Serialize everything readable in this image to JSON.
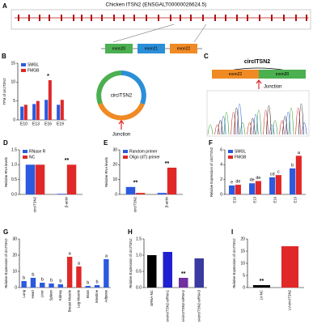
{
  "figure": {
    "panel_a": "A",
    "panel_c": "C",
    "gene_title": "Chicken ITSN2 (ENSGALT00000026624.5)",
    "exons": [
      "exon20",
      "exon21",
      "exon22"
    ],
    "circ_label": "circITSN2",
    "junction": "Junction",
    "c_title": "circITSN2",
    "c_exons": [
      "exon22",
      "exon20"
    ],
    "c_junction": "Junction"
  },
  "chart_data": [
    {
      "type": "bar",
      "panel": "B",
      "ylabel": "TPM of circITSN2",
      "categories": [
        "E10",
        "E13",
        "E16",
        "E19"
      ],
      "series": [
        {
          "name": "SMGL",
          "color": "#2b59e0",
          "values": [
            3.5,
            4.2,
            5.3,
            4.0
          ]
        },
        {
          "name": "FMGB",
          "color": "#e02828",
          "values": [
            4.0,
            5.0,
            10.5,
            5.3
          ]
        }
      ],
      "ylim": [
        0,
        15
      ],
      "yticks": [
        0,
        5,
        10,
        15
      ],
      "annotations": [
        "*"
      ]
    },
    {
      "type": "bar",
      "panel": "D",
      "ylabel": "Relative RNA levels",
      "categories": [
        "circITSN2",
        "β-actin"
      ],
      "series": [
        {
          "name": "RNase R",
          "color": "#2b59e0",
          "values": [
            1.0,
            0.02
          ]
        },
        {
          "name": "NC",
          "color": "#e02828",
          "values": [
            1.0,
            1.0
          ]
        }
      ],
      "ylim": [
        0,
        1.5
      ],
      "yticks": [
        {
          "value": 0,
          "label": "0.0"
        },
        {
          "value": 0.5,
          "label": "0.5"
        },
        {
          "value": 1,
          "label": "1.0"
        },
        {
          "value": 1.5,
          "label": "1.5"
        }
      ],
      "annotations": [
        "**"
      ]
    },
    {
      "type": "bar",
      "panel": "E",
      "ylabel": "Relative RNA levels",
      "categories": [
        "circITSN2",
        "β-actin"
      ],
      "series": [
        {
          "name": "Random primer",
          "color": "#2b59e0",
          "values": [
            5.0,
            1.0
          ]
        },
        {
          "name": "Oligo (dT) primer",
          "color": "#e02828",
          "values": [
            1.0,
            18.0
          ]
        }
      ],
      "ylim": [
        0,
        30
      ],
      "yticks": [
        0,
        10,
        20,
        30
      ],
      "annotations": [
        "**",
        "**"
      ]
    },
    {
      "type": "bar",
      "panel": "F",
      "ylabel": "Relative Expression of circITSN2",
      "categories": [
        "E10",
        "E13",
        "E16",
        "E19"
      ],
      "series": [
        {
          "name": "SMGL",
          "color": "#2b59e0",
          "values": [
            1.2,
            1.5,
            2.3,
            3.5
          ],
          "letters": [
            "e",
            "de",
            "cd",
            "b"
          ]
        },
        {
          "name": "FMGB",
          "color": "#e02828",
          "values": [
            1.3,
            1.8,
            2.6,
            5.2
          ],
          "letters": [
            "de",
            "de",
            "c",
            "a"
          ]
        }
      ],
      "ylim": [
        0,
        6
      ],
      "yticks": [
        0,
        2,
        4,
        6
      ]
    },
    {
      "type": "bar",
      "panel": "G",
      "ylabel": "Relative Expression of circITSN2",
      "categories": [
        "Lung",
        "Heart",
        "Liver",
        "Spleen",
        "Kidney",
        "Breast Muscle",
        "Leg Muscle",
        "Brain",
        "Intestine",
        "Adipose"
      ],
      "values": [
        4,
        6,
        3,
        2.5,
        2,
        19,
        13,
        1,
        1.5,
        17.5
      ],
      "colors": [
        "#2b59e0",
        "#2b59e0",
        "#2b59e0",
        "#2b59e0",
        "#2b59e0",
        "#e02828",
        "#e02828",
        "#2b59e0",
        "#2b59e0",
        "#2b59e0"
      ],
      "letters": [
        "b",
        "b",
        "b",
        "b",
        "b",
        "a",
        "a",
        "b",
        "b",
        "a"
      ],
      "ylim": [
        0,
        30
      ],
      "yticks": [
        0,
        10,
        20,
        30
      ]
    },
    {
      "type": "bar",
      "panel": "H",
      "ylabel": "Relative Expression of circITSN2",
      "categories": [
        "siRNA-NC",
        "si-circITSN2-siRNA1",
        "si-circITSN2-siRNA2",
        "si-circITSN2-siRNA3"
      ],
      "values": [
        1.0,
        1.1,
        0.3,
        0.9
      ],
      "colors": [
        "#000000",
        "#2020d0",
        "#7030a0",
        "#3a3aa0"
      ],
      "ylim": [
        0,
        1.5
      ],
      "yticks": [
        {
          "value": 0,
          "label": "0.0"
        },
        {
          "value": 0.5,
          "label": "0.5"
        },
        {
          "value": 1,
          "label": "1.0"
        },
        {
          "value": 1.5,
          "label": "1.5"
        }
      ],
      "annotations": [
        "**"
      ]
    },
    {
      "type": "bar",
      "panel": "I",
      "ylabel": "Relative Expression of circITSN2",
      "categories": [
        "LV-NC",
        "LV-circITSN2"
      ],
      "values": [
        1.0,
        17.0
      ],
      "colors": [
        "#000000",
        "#e02828"
      ],
      "ylim": [
        0,
        20
      ],
      "yticks": [
        0,
        5,
        10,
        15,
        20
      ],
      "annotations": [
        "**"
      ]
    }
  ]
}
